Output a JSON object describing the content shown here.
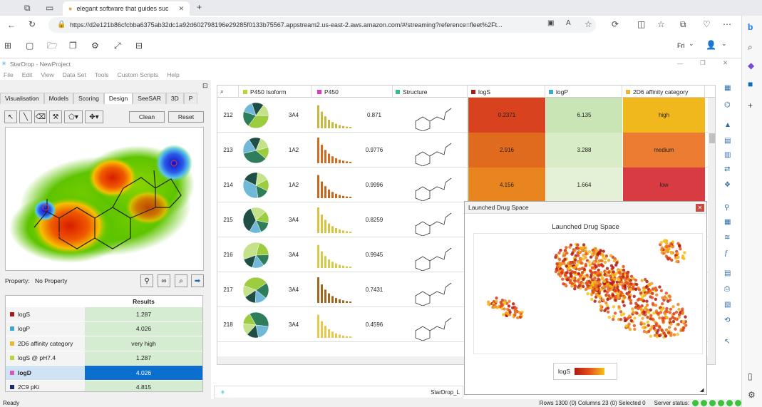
{
  "browser": {
    "tab_title": "elegant software that guides suc",
    "url": "https://d2e121b86cfcbba6375ab32dc1a92d602798196e29285f0133b75567.appstream2.us-east-2.aws.amazon.com/#/streaming?reference=fleet%2Ft..."
  },
  "appstream": {
    "language": "Fri"
  },
  "app": {
    "title": "StarDrop - NewProject",
    "menu": [
      "File",
      "Edit",
      "View",
      "Data Set",
      "Tools",
      "Custom Scripts",
      "Help"
    ],
    "tabs": [
      "Visualisation",
      "Models",
      "Scoring",
      "Design",
      "SeeSAR",
      "3D",
      "P"
    ],
    "active_tab": "Design",
    "clean_label": "Clean",
    "reset_label": "Reset",
    "property_label": "Property:",
    "property_value": "No Property",
    "results_header": "Results",
    "results": [
      {
        "name": "logS",
        "value": "1.287",
        "color": "#a31c1c"
      },
      {
        "name": "logP",
        "value": "4.026",
        "color": "#3aa9cf"
      },
      {
        "name": "2D6 affinity category",
        "value": "very high",
        "color": "#e8b830"
      },
      {
        "name": "logS @ pH7.4",
        "value": "1.287",
        "color": "#b7d43a"
      },
      {
        "name": "logD",
        "value": "4.026",
        "color": "#d05ab8",
        "selected": true
      },
      {
        "name": "2C9 pKi",
        "value": "4.815",
        "color": "#1d2d6b"
      }
    ],
    "status_left": "Ready",
    "status_right": "Rows 1300 (0) Columns 23 (0) Selected 0",
    "server_status": "Server status:",
    "bottom_tab": "StarDrop_L"
  },
  "grid": {
    "columns": [
      {
        "name": "P450 Isoform",
        "color": "#b7d43a"
      },
      {
        "name": "P450",
        "color": "#d63cc6"
      },
      {
        "name": "Structure",
        "color": "#2fbf8f"
      },
      {
        "name": "logS",
        "color": "#a31c1c"
      },
      {
        "name": "logP",
        "color": "#3aa9cf"
      },
      {
        "name": "2D6 affinity category",
        "color": "#e8b830"
      }
    ],
    "rows": [
      {
        "id": "212",
        "isoform": "3A4",
        "p450": "0.871",
        "logS": "0.2371",
        "logP": "6.135",
        "cat": "high",
        "logS_color": "#d8421f",
        "logP_color": "#c9e5b6",
        "cat_color": "#f1b81e"
      },
      {
        "id": "213",
        "isoform": "1A2",
        "p450": "0.9776",
        "logS": "2.916",
        "logP": "3.288",
        "cat": "medium",
        "logS_color": "#e06a1e",
        "logP_color": "#d9ecc8",
        "cat_color": "#ec7c32"
      },
      {
        "id": "214",
        "isoform": "1A2",
        "p450": "0.9996",
        "logS": "4.156",
        "logP": "1.664",
        "cat": "low",
        "logS_color": "#e9851f",
        "logP_color": "#e4f1d7",
        "cat_color": "#d93b43"
      },
      {
        "id": "215",
        "isoform": "3A4",
        "p450": "0.8259",
        "logS": "",
        "logP": "",
        "cat": ""
      },
      {
        "id": "216",
        "isoform": "3A4",
        "p450": "0.9945",
        "logS": "",
        "logP": "",
        "cat": ""
      },
      {
        "id": "217",
        "isoform": "3A4",
        "p450": "0.7431",
        "logS": "",
        "logP": "",
        "cat": ""
      },
      {
        "id": "218",
        "isoform": "3A4",
        "p450": "0.4596",
        "logS": "",
        "logP": "",
        "cat": ""
      }
    ]
  },
  "popup": {
    "window_title": "Launched Drug Space",
    "chart_title": "Launched Drug Space",
    "legend_label": "logS"
  }
}
